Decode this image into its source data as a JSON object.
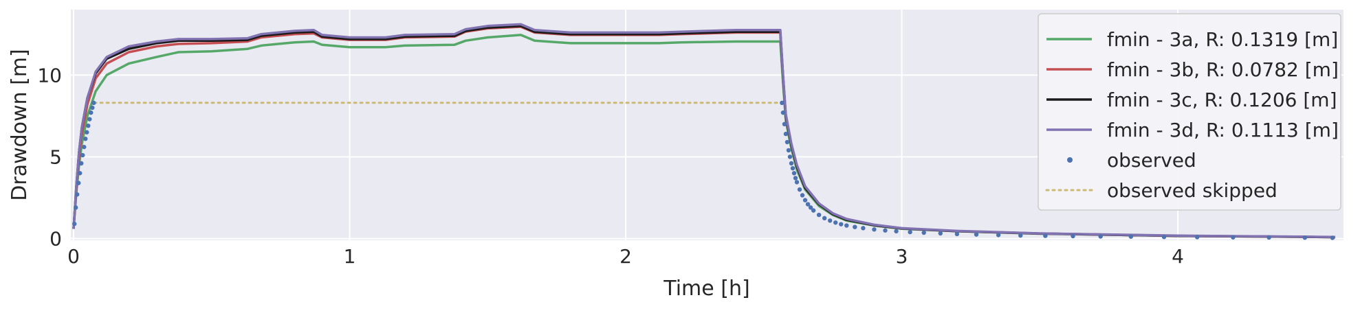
{
  "chart_data": {
    "type": "line",
    "xlabel": "Time [h]",
    "ylabel": "Drawdown [m]",
    "xlim": [
      -0.01,
      4.6
    ],
    "ylim": [
      -0.1,
      14.0
    ],
    "xticks": [
      0,
      1,
      2,
      3,
      4
    ],
    "xtick_labels": [
      "0",
      "1",
      "2",
      "3",
      "4"
    ],
    "yticks": [
      0,
      5,
      10
    ],
    "ytick_labels": [
      "0",
      "5",
      "10"
    ],
    "grid": true,
    "legend_position": "top-right",
    "series": [
      {
        "name": "fmin - 3a, R: 0.1319 [m]",
        "style": "line",
        "color": "#55a868",
        "x": [
          0.0,
          0.01,
          0.02,
          0.03,
          0.05,
          0.08,
          0.12,
          0.2,
          0.3,
          0.38,
          0.5,
          0.63,
          0.68,
          0.8,
          0.87,
          0.9,
          1.0,
          1.13,
          1.2,
          1.38,
          1.42,
          1.5,
          1.62,
          1.67,
          1.8,
          2.0,
          2.12,
          2.2,
          2.4,
          2.56,
          2.57,
          2.58,
          2.6,
          2.62,
          2.65,
          2.7,
          2.75,
          2.8,
          2.9,
          3.0,
          3.2,
          3.5,
          4.0,
          4.5,
          4.57
        ],
        "y": [
          0.6,
          2.8,
          4.5,
          5.8,
          7.5,
          9.0,
          10.0,
          10.7,
          11.1,
          11.4,
          11.45,
          11.6,
          11.8,
          12.0,
          12.05,
          11.85,
          11.7,
          11.7,
          11.8,
          11.85,
          12.1,
          12.3,
          12.45,
          12.1,
          11.95,
          11.95,
          11.95,
          12.0,
          12.05,
          12.05,
          9.5,
          7.2,
          5.5,
          4.2,
          3.0,
          2.0,
          1.45,
          1.1,
          0.8,
          0.6,
          0.45,
          0.3,
          0.17,
          0.1,
          0.09
        ]
      },
      {
        "name": "fmin - 3b, R: 0.0782 [m]",
        "style": "line",
        "color": "#c44e52",
        "x": [
          0.0,
          0.01,
          0.02,
          0.03,
          0.05,
          0.08,
          0.12,
          0.2,
          0.3,
          0.38,
          0.5,
          0.63,
          0.68,
          0.8,
          0.87,
          0.9,
          1.0,
          1.13,
          1.2,
          1.38,
          1.42,
          1.5,
          1.62,
          1.67,
          1.8,
          2.0,
          2.12,
          2.2,
          2.4,
          2.56,
          2.57,
          2.58,
          2.6,
          2.62,
          2.65,
          2.7,
          2.75,
          2.8,
          2.9,
          3.0,
          3.2,
          3.5,
          4.0,
          4.5,
          4.57
        ],
        "y": [
          0.6,
          3.0,
          5.0,
          6.4,
          8.2,
          9.8,
          10.7,
          11.4,
          11.75,
          11.9,
          11.95,
          12.05,
          12.3,
          12.5,
          12.55,
          12.3,
          12.15,
          12.15,
          12.3,
          12.35,
          12.65,
          12.85,
          12.95,
          12.6,
          12.45,
          12.45,
          12.45,
          12.5,
          12.6,
          12.6,
          9.9,
          7.5,
          5.7,
          4.4,
          3.1,
          2.1,
          1.5,
          1.15,
          0.82,
          0.62,
          0.46,
          0.31,
          0.17,
          0.1,
          0.09
        ]
      },
      {
        "name": "fmin - 3c, R: 0.1206 [m]",
        "style": "line",
        "color": "#1a1a1a",
        "x": [
          0.0,
          0.01,
          0.02,
          0.03,
          0.05,
          0.08,
          0.12,
          0.2,
          0.3,
          0.38,
          0.5,
          0.63,
          0.68,
          0.8,
          0.87,
          0.9,
          1.0,
          1.13,
          1.2,
          1.38,
          1.42,
          1.5,
          1.62,
          1.67,
          1.8,
          2.0,
          2.12,
          2.2,
          2.4,
          2.56,
          2.57,
          2.58,
          2.6,
          2.62,
          2.65,
          2.7,
          2.75,
          2.8,
          2.9,
          3.0,
          3.2,
          3.5,
          4.0,
          4.5,
          4.57
        ],
        "y": [
          0.6,
          3.2,
          5.3,
          6.8,
          8.6,
          10.1,
          11.0,
          11.6,
          11.95,
          12.1,
          12.1,
          12.15,
          12.4,
          12.6,
          12.65,
          12.35,
          12.2,
          12.2,
          12.35,
          12.4,
          12.7,
          12.9,
          13.0,
          12.65,
          12.5,
          12.5,
          12.5,
          12.55,
          12.65,
          12.65,
          9.9,
          7.5,
          5.7,
          4.4,
          3.1,
          2.1,
          1.5,
          1.15,
          0.82,
          0.62,
          0.46,
          0.31,
          0.17,
          0.1,
          0.09
        ]
      },
      {
        "name": "fmin - 3d, R: 0.1113 [m]",
        "style": "line",
        "color": "#8172b2",
        "x": [
          0.0,
          0.01,
          0.02,
          0.03,
          0.05,
          0.08,
          0.12,
          0.2,
          0.3,
          0.38,
          0.5,
          0.63,
          0.68,
          0.8,
          0.87,
          0.9,
          1.0,
          1.13,
          1.2,
          1.38,
          1.42,
          1.5,
          1.62,
          1.67,
          1.8,
          2.0,
          2.12,
          2.2,
          2.4,
          2.56,
          2.57,
          2.58,
          2.6,
          2.62,
          2.65,
          2.7,
          2.75,
          2.8,
          2.9,
          3.0,
          3.2,
          3.5,
          4.0,
          4.5,
          4.57
        ],
        "y": [
          0.6,
          3.2,
          5.3,
          6.8,
          8.6,
          10.2,
          11.1,
          11.75,
          12.05,
          12.2,
          12.2,
          12.25,
          12.5,
          12.7,
          12.75,
          12.45,
          12.3,
          12.3,
          12.45,
          12.5,
          12.8,
          13.0,
          13.1,
          12.75,
          12.6,
          12.6,
          12.6,
          12.65,
          12.75,
          12.75,
          10.0,
          7.6,
          5.8,
          4.5,
          3.2,
          2.15,
          1.55,
          1.2,
          0.85,
          0.64,
          0.47,
          0.32,
          0.18,
          0.11,
          0.1
        ]
      },
      {
        "name": "observed",
        "style": "points",
        "color": "#4c72b0",
        "x": [
          0.003,
          0.008,
          0.013,
          0.018,
          0.023,
          0.028,
          0.033,
          0.038,
          0.043,
          0.048,
          0.053,
          0.058,
          0.063,
          0.068,
          0.073,
          2.566,
          2.57,
          2.575,
          2.58,
          2.585,
          2.59,
          2.595,
          2.6,
          2.605,
          2.61,
          2.615,
          2.62,
          2.63,
          2.64,
          2.65,
          2.66,
          2.67,
          2.68,
          2.7,
          2.72,
          2.74,
          2.76,
          2.78,
          2.8,
          2.83,
          2.86,
          2.9,
          2.94,
          2.98,
          3.03,
          3.08,
          3.14,
          3.2,
          3.27,
          3.35,
          3.43,
          3.52,
          3.62,
          3.72,
          3.83,
          3.95,
          4.07,
          4.2,
          4.33,
          4.46,
          4.56
        ],
        "y": [
          0.9,
          1.9,
          2.7,
          3.4,
          4.0,
          4.6,
          5.1,
          5.6,
          6.1,
          6.5,
          6.9,
          7.3,
          7.7,
          8.0,
          8.3,
          8.3,
          7.7,
          7.0,
          6.4,
          5.9,
          5.4,
          5.0,
          4.6,
          4.3,
          4.0,
          3.7,
          3.45,
          3.0,
          2.65,
          2.35,
          2.1,
          1.9,
          1.72,
          1.45,
          1.25,
          1.1,
          0.98,
          0.88,
          0.8,
          0.71,
          0.64,
          0.56,
          0.5,
          0.45,
          0.4,
          0.36,
          0.32,
          0.28,
          0.25,
          0.22,
          0.19,
          0.17,
          0.15,
          0.13,
          0.12,
          0.1,
          0.09,
          0.08,
          0.07,
          0.06,
          0.05
        ]
      },
      {
        "name": "observed skipped",
        "style": "dotted",
        "color": "#ccb974",
        "x": [
          0.075,
          2.56
        ],
        "y": [
          8.3,
          8.3
        ]
      }
    ]
  }
}
